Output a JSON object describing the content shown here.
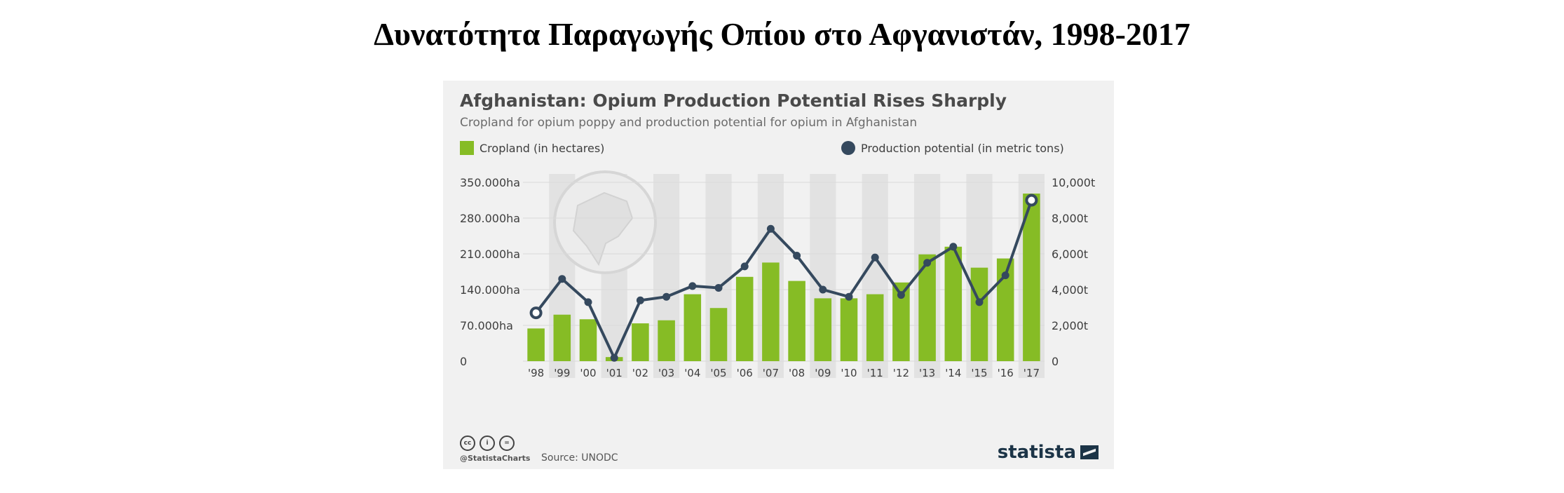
{
  "slide": {
    "title": "Δυνατότητα Παραγωγής Οπίου στο Αφγανιστάν, 1998-2017"
  },
  "infographic": {
    "title": "Afghanistan: Opium Production Potential Rises Sharply",
    "subtitle": "Cropland for opium poppy and production potential for opium in Afghanistan",
    "legend_bar": "Cropland (in hectares)",
    "legend_line": "Production potential (in metric tons)",
    "handle": "@StatistaCharts",
    "source": "Source: UNODC",
    "brand": "statista",
    "cc_icons": [
      "cc",
      "i",
      "="
    ],
    "map_icon": "afghanistan-map-icon"
  },
  "chart_data": {
    "type": "bar",
    "categories": [
      "'98",
      "'99",
      "'00",
      "'01",
      "'02",
      "'03",
      "'04",
      "'05",
      "'06",
      "'07",
      "'08",
      "'09",
      "'10",
      "'11",
      "'12",
      "'13",
      "'14",
      "'15",
      "'16",
      "'17"
    ],
    "series": [
      {
        "name": "Cropland (in hectares)",
        "type": "bar",
        "axis": "left",
        "color": "#86bc25",
        "values": [
          64000,
          91000,
          82000,
          8000,
          74000,
          80000,
          131000,
          104000,
          165000,
          193000,
          157000,
          123000,
          123000,
          131000,
          154000,
          209000,
          224000,
          183000,
          201000,
          328000
        ]
      },
      {
        "name": "Production potential (in metric tons)",
        "type": "line",
        "axis": "right",
        "color": "#35495e",
        "values": [
          2700,
          4600,
          3300,
          185,
          3400,
          3600,
          4200,
          4100,
          5300,
          7400,
          5900,
          4000,
          3600,
          5800,
          3700,
          5500,
          6400,
          3300,
          4800,
          9000
        ]
      }
    ],
    "y_left": {
      "ylim": [
        0,
        350000
      ],
      "ticks": [
        0,
        70000,
        140000,
        210000,
        280000,
        350000
      ],
      "tick_labels": [
        "0",
        "70.000ha",
        "140.000ha",
        "210.000ha",
        "280.000ha",
        "350.000ha"
      ]
    },
    "y_right": {
      "ylim": [
        0,
        10000
      ],
      "ticks": [
        0,
        2000,
        4000,
        6000,
        8000,
        10000
      ],
      "tick_labels": [
        "0",
        "2,000t",
        "4,000t",
        "6,000t",
        "8,000t",
        "10,000t"
      ]
    },
    "grid": true,
    "legend": "top",
    "alternating_column_bands": true
  }
}
